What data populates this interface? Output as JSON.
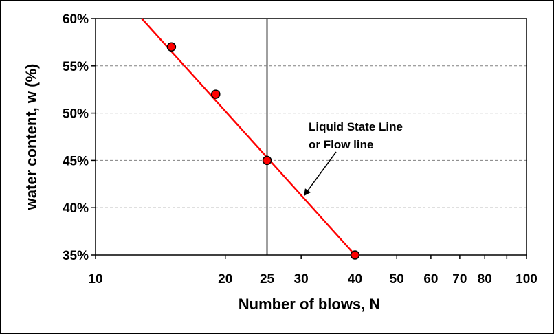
{
  "chart_data": {
    "type": "scatter",
    "x_scale": "log",
    "xlim": [
      10,
      100
    ],
    "ylim": [
      35,
      60
    ],
    "grid": {
      "horizontal": "dashed",
      "vertical": false
    },
    "xlabel": "Number of blows, N",
    "ylabel": "water content, w (%)",
    "x_ticks": [
      {
        "value": 10,
        "label": "10"
      },
      {
        "value": 20,
        "label": "20"
      },
      {
        "value": 30,
        "label": "30"
      },
      {
        "value": 40,
        "label": "40"
      },
      {
        "value": 50,
        "label": "50"
      },
      {
        "value": 60,
        "label": "60"
      },
      {
        "value": 70,
        "label": "70"
      },
      {
        "value": 80,
        "label": "80"
      },
      {
        "value": 100,
        "label": "100"
      }
    ],
    "x_minor_ticks": [
      90
    ],
    "y_ticks": [
      {
        "value": 35,
        "label": "35%"
      },
      {
        "value": 40,
        "label": "40%"
      },
      {
        "value": 45,
        "label": "45%"
      },
      {
        "value": 50,
        "label": "50%"
      },
      {
        "value": 55,
        "label": "55%"
      },
      {
        "value": 60,
        "label": "60%"
      }
    ],
    "highlight": {
      "value": 25,
      "label": "25",
      "color": "#ff0000"
    },
    "points": [
      {
        "x": 15,
        "y": 57
      },
      {
        "x": 19,
        "y": 52
      },
      {
        "x": 25,
        "y": 45
      },
      {
        "x": 40,
        "y": 35
      }
    ],
    "fit_line": {
      "x_start": 12.8,
      "y_start": 60,
      "x_end": 40,
      "y_end": 35,
      "color": "#ff0000"
    },
    "annotation": {
      "lines": [
        "Liquid State Line",
        "or Flow line"
      ],
      "arrow_to": {
        "x": 30.5,
        "y": 41.3
      }
    },
    "colors": {
      "marker_fill": "#ff0000",
      "marker_stroke": "#000000",
      "grid": "#808080",
      "vline": "#808080"
    }
  }
}
